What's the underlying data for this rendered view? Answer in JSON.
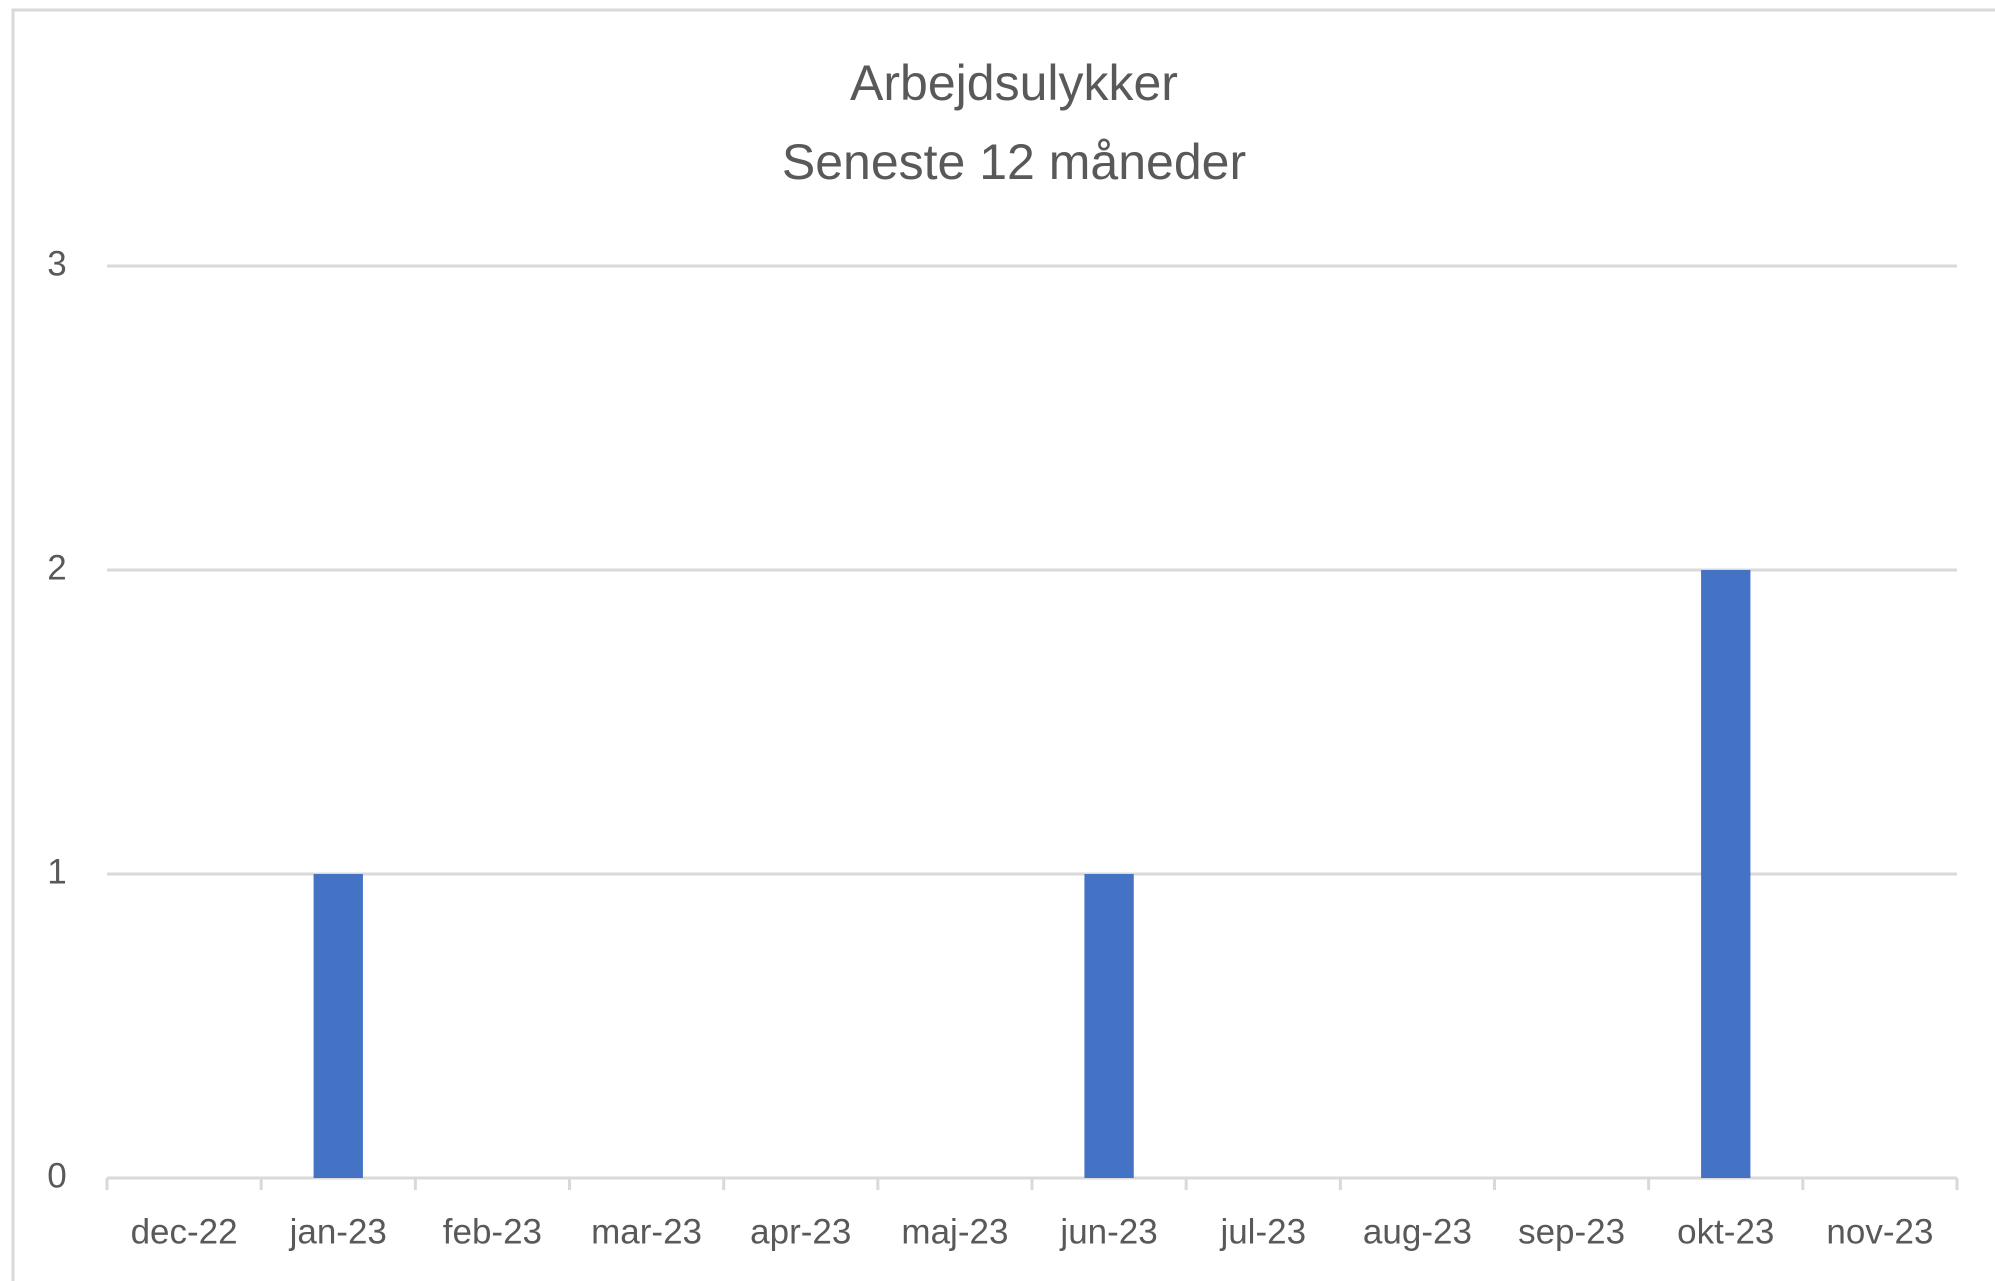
{
  "chart_data": {
    "type": "bar",
    "title": "Arbejdsulykker",
    "subtitle": "Seneste 12 måneder",
    "categories": [
      "dec-22",
      "jan-23",
      "feb-23",
      "mar-23",
      "apr-23",
      "maj-23",
      "jun-23",
      "jul-23",
      "aug-23",
      "sep-23",
      "okt-23",
      "nov-23"
    ],
    "values": [
      0,
      1,
      0,
      0,
      0,
      0,
      1,
      0,
      0,
      0,
      2,
      0
    ],
    "color": "#4472c4",
    "ylim": [
      0,
      3
    ],
    "yticks": [
      0,
      1,
      2,
      3
    ],
    "grid": true
  }
}
